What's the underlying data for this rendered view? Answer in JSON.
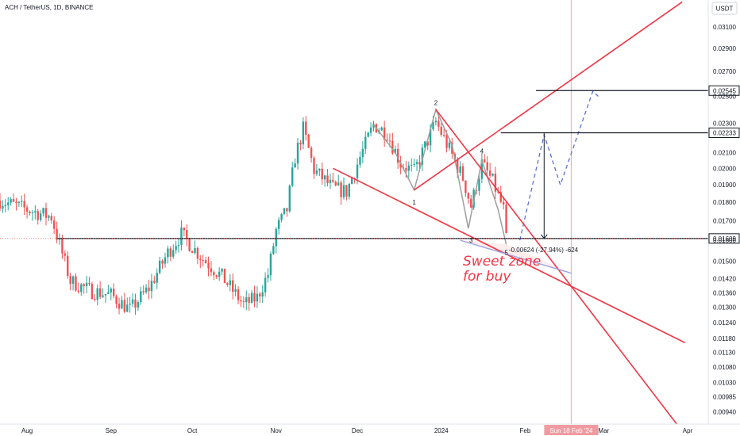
{
  "header": {
    "symbol_text": "ACH / TetherUS, 1D, BINANCE",
    "currency": "USDT"
  },
  "colors": {
    "up": "#26a69a",
    "down": "#ef5350",
    "trend_line": "#f23645",
    "wave": "#9e9e9e",
    "projection": "#5b6fd6",
    "vertical_marker": "#f7a1a8",
    "label_bg": "#131722",
    "date_badge": "#f09ba1"
  },
  "chart_data": {
    "type": "candlestick",
    "title": "ACH / TetherUS, 1D, BINANCE",
    "y_axis": {
      "scale": "log",
      "range": [
        0.00905,
        0.0337
      ],
      "ticks": [
        "0.03100",
        "0.02900",
        "0.02700",
        "0.02500",
        "0.02300",
        "0.02100",
        "0.02000",
        "0.01900",
        "0.01800",
        "0.01700",
        "0.01600",
        "0.01500",
        "0.01420",
        "0.01360",
        "0.01300",
        "0.01240",
        "0.01180",
        "0.01130",
        "0.01080",
        "0.01030",
        "0.00985",
        "0.00940"
      ]
    },
    "x_axis": {
      "range": [
        "2023-07-22",
        "2024-04-01"
      ],
      "ticks": [
        {
          "label": "Aug",
          "date": "2023-08-01"
        },
        {
          "label": "Sep",
          "date": "2023-09-01"
        },
        {
          "label": "Oct",
          "date": "2023-10-01"
        },
        {
          "label": "Nov",
          "date": "2023-11-01"
        },
        {
          "label": "Dec",
          "date": "2023-12-01"
        },
        {
          "label": "2024",
          "date": "2024-01-01"
        },
        {
          "label": "Feb",
          "date": "2024-02-01"
        },
        {
          "label": "Mar",
          "date": "2024-03-01"
        },
        {
          "label": "Apr",
          "date": "2024-04-01"
        }
      ]
    },
    "price_keypoints": [
      [
        "2023-07-22",
        0.0181
      ],
      [
        "2023-08-01",
        0.0176
      ],
      [
        "2023-08-10",
        0.0172
      ],
      [
        "2023-08-17",
        0.0141
      ],
      [
        "2023-08-24",
        0.0137
      ],
      [
        "2023-09-01",
        0.0135
      ],
      [
        "2023-09-08",
        0.0129
      ],
      [
        "2023-09-15",
        0.0138
      ],
      [
        "2023-09-22",
        0.0154
      ],
      [
        "2023-09-27",
        0.0163
      ],
      [
        "2023-10-05",
        0.0151
      ],
      [
        "2023-10-12",
        0.0143
      ],
      [
        "2023-10-20",
        0.0131
      ],
      [
        "2023-10-25",
        0.0134
      ],
      [
        "2023-10-29",
        0.0144
      ],
      [
        "2023-11-01",
        0.0165
      ],
      [
        "2023-11-05",
        0.0176
      ],
      [
        "2023-11-08",
        0.0207
      ],
      [
        "2023-11-11",
        0.0226
      ],
      [
        "2023-11-15",
        0.0199
      ],
      [
        "2023-11-22",
        0.0188
      ],
      [
        "2023-11-27",
        0.0186
      ],
      [
        "2023-12-02",
        0.0207
      ],
      [
        "2023-12-07",
        0.0229
      ],
      [
        "2023-12-12",
        0.0223
      ],
      [
        "2023-12-17",
        0.0203
      ],
      [
        "2023-12-22",
        0.0198
      ],
      [
        "2023-12-30",
        0.0231
      ],
      [
        "2024-01-04",
        0.0212
      ],
      [
        "2024-01-09",
        0.0194
      ],
      [
        "2024-01-12",
        0.0178
      ],
      [
        "2024-01-16",
        0.0203
      ],
      [
        "2024-01-20",
        0.0192
      ],
      [
        "2024-01-24",
        0.0176
      ],
      [
        "2024-01-25",
        0.016
      ]
    ],
    "horizontal_levels": [
      {
        "value": 0.02545,
        "label": "0.02545"
      },
      {
        "value": 0.02233,
        "label": "0.02233"
      },
      {
        "value": 0.01609,
        "label": "0.01609"
      }
    ],
    "last_price_label": "0.01609",
    "wave_labels": [
      "1",
      "2",
      "3",
      "4",
      "5"
    ],
    "measure_text": "-0.00624 (-27.94%) -624",
    "annotation": "Sweet  zone\nfor buy",
    "vertical_marker_label": "Sun 18 Feb '24",
    "grid": false,
    "legend": "none"
  }
}
